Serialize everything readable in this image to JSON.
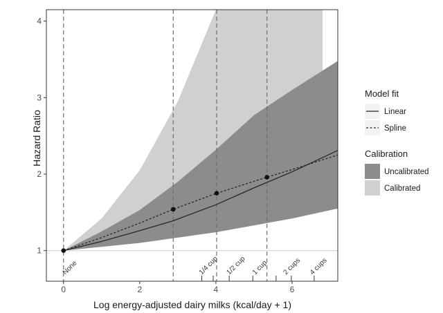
{
  "chart_data": {
    "type": "line",
    "xlabel": "Log energy-adjusted dairy milks (kcal/day + 1)",
    "ylabel": "Hazard Ratio",
    "xlim": [
      -0.45,
      7.2
    ],
    "ylim": [
      0.6,
      4.15
    ],
    "x_ticks": [
      0,
      2,
      4,
      6
    ],
    "y_ticks": [
      1,
      2,
      3,
      4
    ],
    "reference_hr": 1,
    "vertical_lines": [
      0,
      2.88,
      4.02,
      5.34
    ],
    "annotations": [
      {
        "text": "None",
        "x": 0.05
      },
      {
        "text": "1/4 cup",
        "x": 3.63
      },
      {
        "text": "1/2 cup",
        "x": 4.35
      },
      {
        "text": "1 cup",
        "x": 5.03
      },
      {
        "text": "2 cups",
        "x": 5.84
      },
      {
        "text": "4 cups",
        "x": 6.54
      }
    ],
    "annotation_ticks": [
      3.63,
      3.93,
      4.35,
      4.97,
      5.58,
      5.98,
      6.58
    ],
    "series": [
      {
        "name": "Linear",
        "style": "solid",
        "x": [
          0,
          1,
          2,
          2.88,
          4,
          5,
          6,
          7.2
        ],
        "y": [
          1,
          1.12,
          1.26,
          1.39,
          1.6,
          1.82,
          2.03,
          2.31
        ]
      },
      {
        "name": "Spline",
        "style": "dotted",
        "x": [
          0,
          1,
          2,
          2.88,
          4.02,
          5.34,
          6,
          7.2
        ],
        "y": [
          1,
          1.17,
          1.36,
          1.54,
          1.75,
          1.96,
          2.06,
          2.25
        ]
      }
    ],
    "points": [
      {
        "x": 0,
        "y": 1
      },
      {
        "x": 2.88,
        "y": 1.54
      },
      {
        "x": 4.02,
        "y": 1.75
      },
      {
        "x": 5.34,
        "y": 1.96
      }
    ],
    "bands": [
      {
        "name": "Calibrated",
        "color": "#d0d0d0",
        "x": [
          0,
          1,
          2,
          3,
          4,
          4.5,
          5,
          5.4,
          6.8
        ],
        "lower": [
          1,
          1.08,
          1.18,
          1.32,
          1.45,
          1.53,
          1.62,
          1.7,
          2.08
        ],
        "upper": [
          1,
          1.42,
          2.05,
          2.95,
          4.15,
          4.15,
          4.15,
          4.15,
          4.15
        ]
      },
      {
        "name": "Uncalibrated",
        "color": "#8c8c8c",
        "x": [
          0,
          1,
          2,
          3,
          4,
          5,
          6,
          7.2
        ],
        "lower": [
          1,
          1.05,
          1.1,
          1.17,
          1.24,
          1.33,
          1.42,
          1.55
        ],
        "upper": [
          1,
          1.25,
          1.53,
          1.9,
          2.32,
          2.77,
          3.1,
          3.48
        ]
      }
    ],
    "legend": {
      "position": "right",
      "groups": [
        {
          "title": "Model fit",
          "entries": [
            {
              "label": "Linear",
              "style": "solid"
            },
            {
              "label": "Spline",
              "style": "dotted"
            }
          ]
        },
        {
          "title": "Calibration",
          "entries": [
            {
              "label": "Uncalibrated",
              "color": "#8c8c8c"
            },
            {
              "label": "Calibrated",
              "color": "#d0d0d0"
            }
          ]
        }
      ]
    },
    "grid": false
  }
}
